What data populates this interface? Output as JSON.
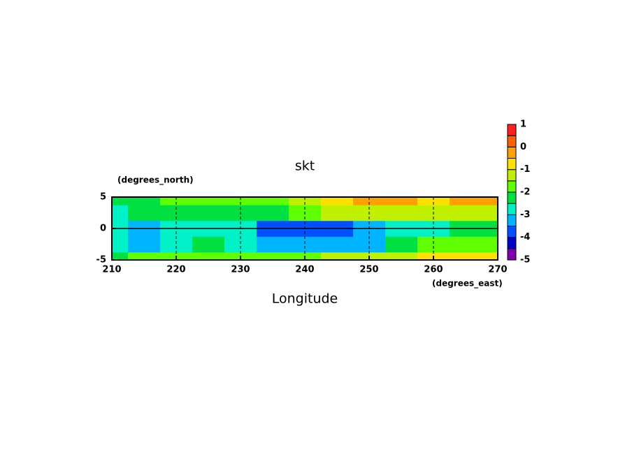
{
  "chart_data": {
    "type": "contour",
    "title": "skt",
    "y_units": "(degrees_north)",
    "x_units": "(degrees_east)",
    "x_label": "Longitude",
    "x": [
      210,
      215,
      220,
      225,
      230,
      235,
      240,
      245,
      250,
      255,
      260,
      265,
      270
    ],
    "y": [
      -5,
      -2.5,
      0,
      2.5,
      5
    ],
    "z": [
      [
        -2.1,
        -2.0,
        -1.9,
        -1.9,
        -1.8,
        -1.8,
        -1.6,
        -1.3,
        -1.4,
        -1.3,
        -1.0,
        -0.9,
        -1.0
      ],
      [
        -2.6,
        -3.1,
        -2.6,
        -2.4,
        -2.6,
        -3.2,
        -3.4,
        -3.4,
        -3.2,
        -2.4,
        -2.0,
        -1.8,
        -1.8
      ],
      [
        -3.0,
        -3.2,
        -2.8,
        -2.6,
        -2.8,
        -3.6,
        -3.6,
        -3.8,
        -3.5,
        -3.0,
        -2.6,
        -2.4,
        -2.5
      ],
      [
        -2.6,
        -2.4,
        -2.2,
        -2.2,
        -2.2,
        -2.3,
        -2.0,
        -1.5,
        -1.1,
        -1.2,
        -1.5,
        -1.3,
        -1.2
      ],
      [
        -2.2,
        -2.3,
        -2.0,
        -1.8,
        -1.8,
        -1.6,
        -1.2,
        -1.0,
        -0.3,
        -0.4,
        -0.8,
        -0.3,
        -0.3
      ]
    ],
    "levels": [
      -5,
      -4.5,
      -4,
      -3.5,
      -3,
      -2.5,
      -2,
      -1.5,
      -1,
      -0.5,
      0,
      0.5,
      1
    ],
    "colors": [
      "#8000b0",
      "#0000c8",
      "#0050ff",
      "#00b4ff",
      "#00f0c8",
      "#00e040",
      "#60ff00",
      "#c0f000",
      "#ffe000",
      "#ffa000",
      "#ff6000",
      "#ff2020",
      "#ff9c9c"
    ],
    "xlim": [
      210,
      270
    ],
    "ylim": [
      -5,
      5
    ],
    "xticks": [
      210,
      220,
      230,
      240,
      250,
      260,
      270
    ],
    "yticks": [
      -5,
      0,
      5
    ],
    "cbar_ticks": [
      -5,
      -4,
      -3,
      -2,
      -1,
      0,
      1
    ],
    "grid": true
  }
}
